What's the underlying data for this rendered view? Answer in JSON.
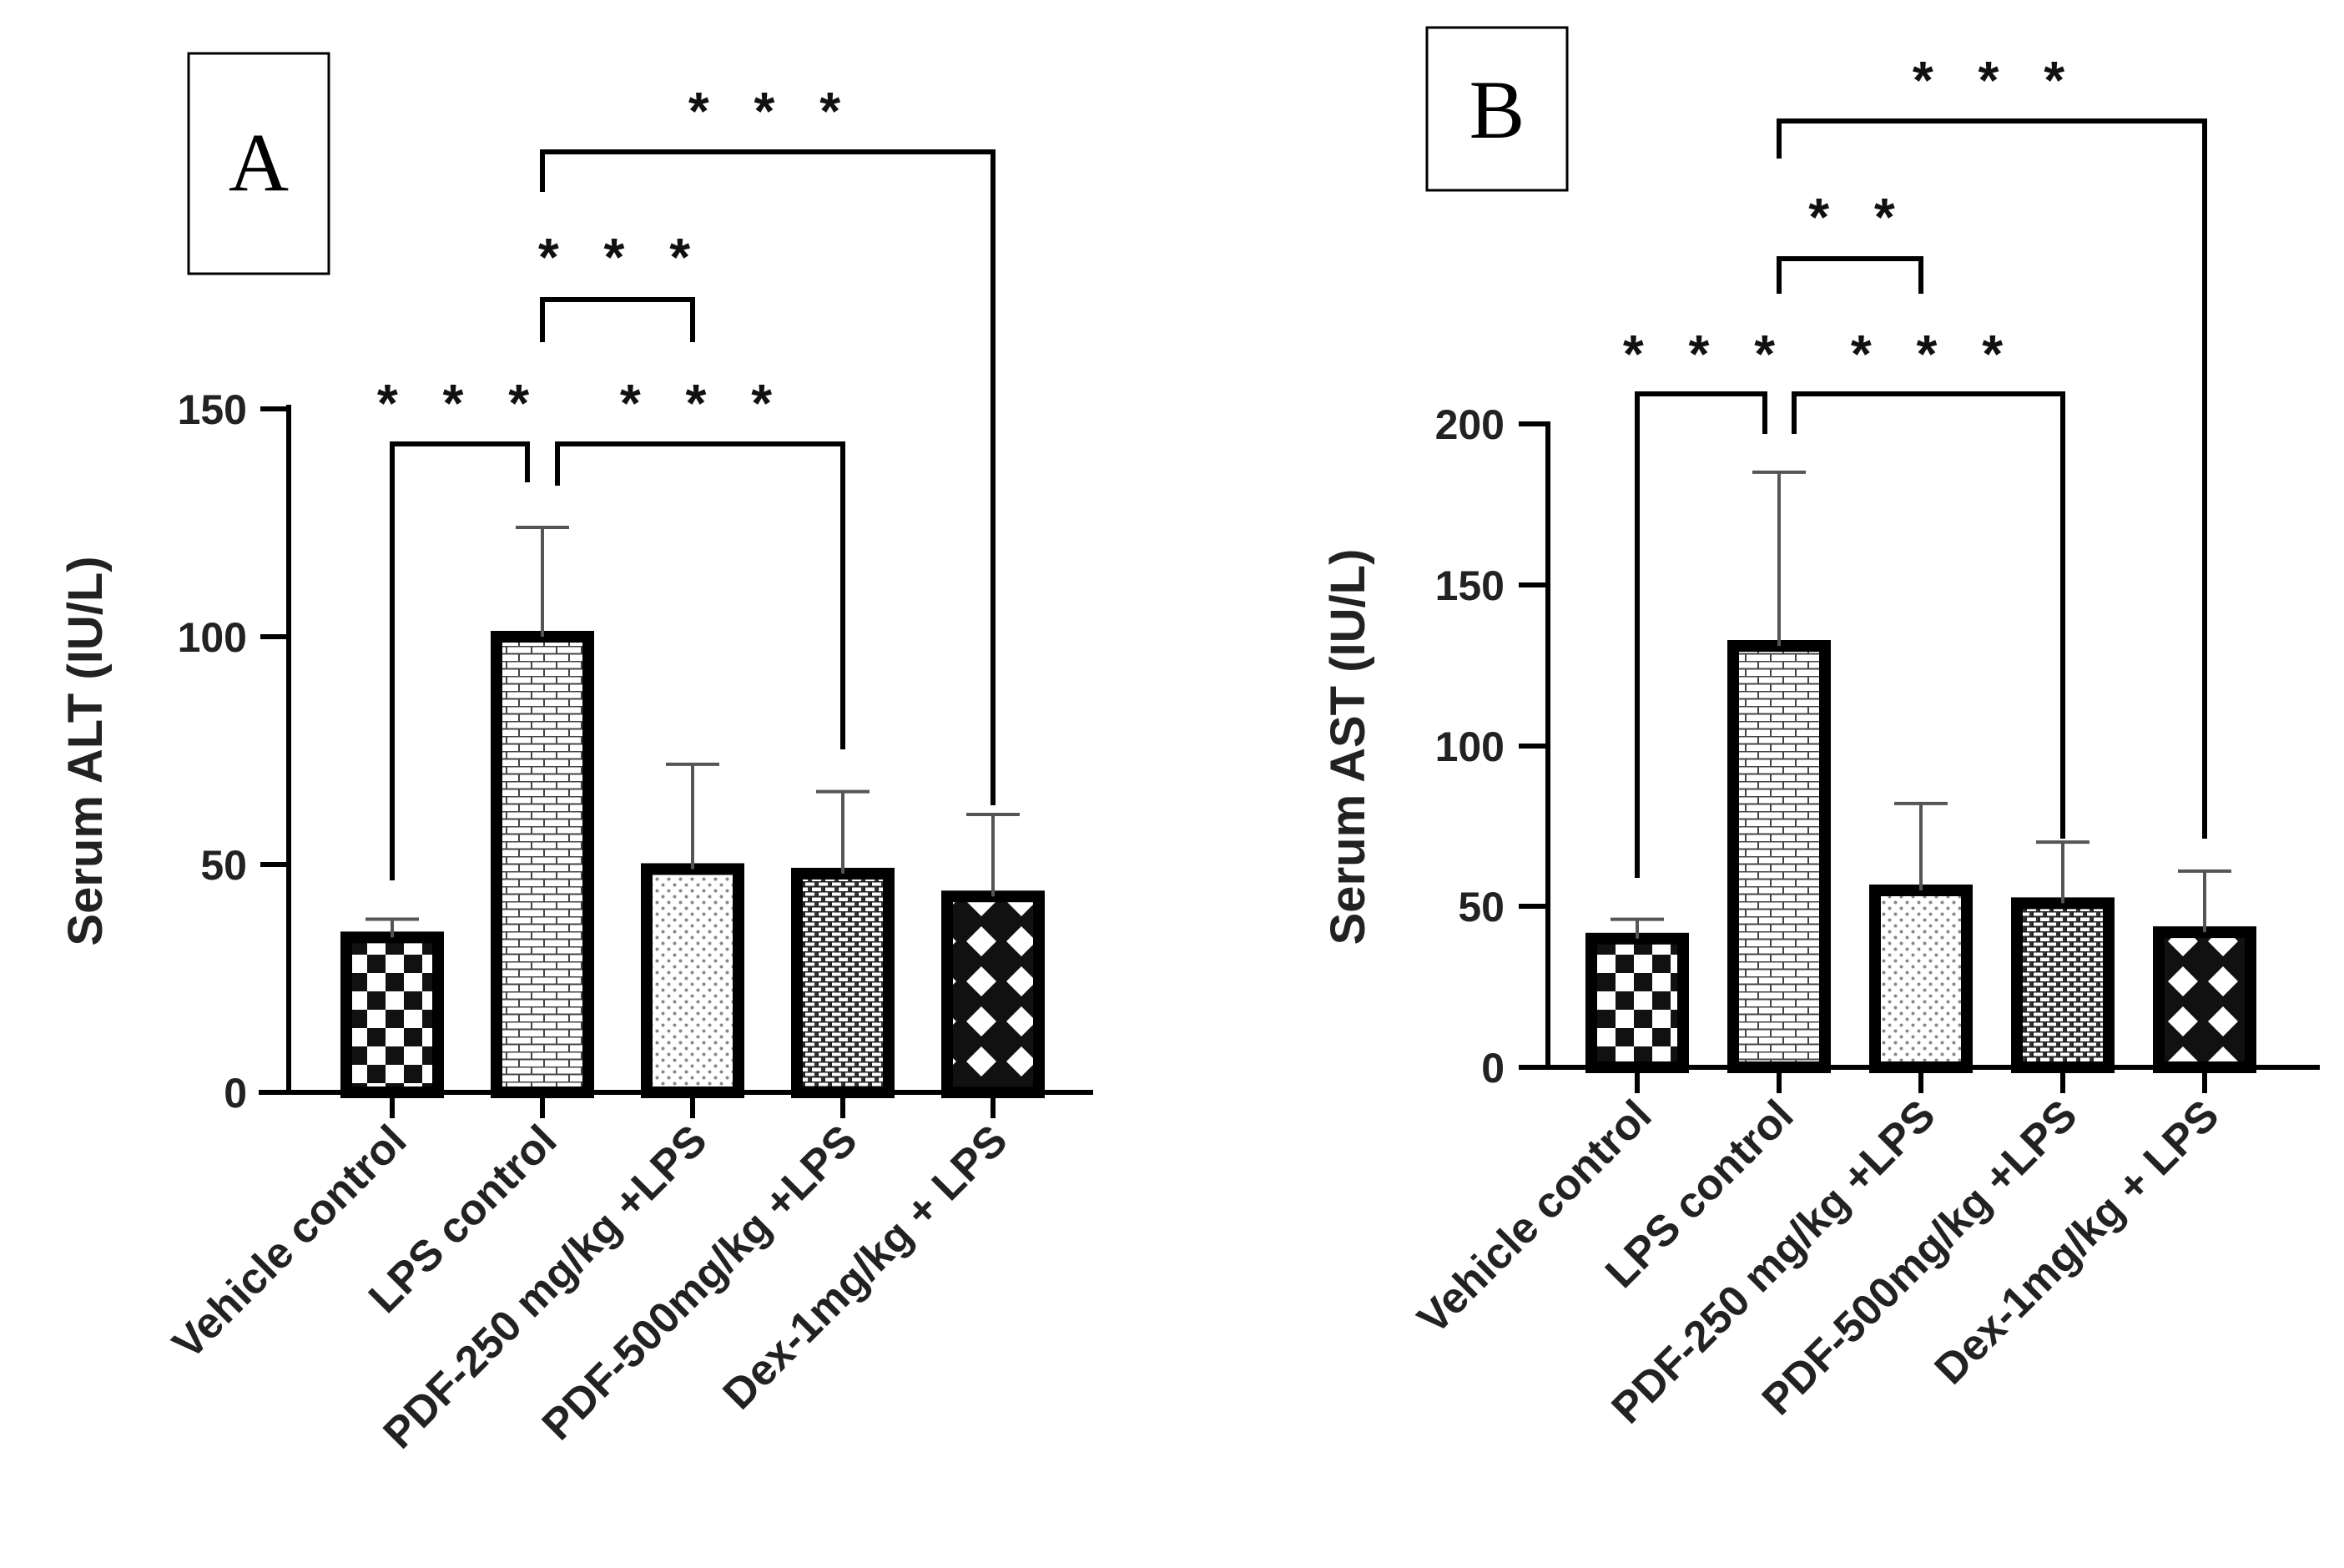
{
  "chart_data": [
    {
      "type": "bar",
      "panel_label": "A",
      "title": "",
      "xlabel": "",
      "ylabel": "Serum ALT (IU/L)",
      "ylim": [
        0,
        150
      ],
      "yticks": [
        0,
        50,
        100,
        150
      ],
      "ytick_labels": [
        "0",
        "50",
        "100",
        "150"
      ],
      "categories": [
        "Vehicle control",
        "LPS control",
        "PDF-250 mg/kg +LPS",
        "PDF-500mg/kg +LPS",
        "Dex-1mg/kg + LPS"
      ],
      "values": [
        34,
        100,
        49,
        48,
        43
      ],
      "errors": [
        4,
        24,
        23,
        18,
        18
      ],
      "patterns": [
        "checker",
        "brick",
        "dots",
        "dense-brick",
        "diamond"
      ],
      "significance": [
        {
          "from": 0,
          "to": 1,
          "label": "* * *"
        },
        {
          "from": 1,
          "to": 3,
          "label": "* * *"
        },
        {
          "from": 1,
          "to": 2,
          "label": "* * *"
        },
        {
          "from": 1,
          "to": 4,
          "label": "* * *"
        }
      ]
    },
    {
      "type": "bar",
      "panel_label": "B",
      "title": "",
      "xlabel": "",
      "ylabel": "Serum AST (IU/L)",
      "ylim": [
        0,
        200
      ],
      "yticks": [
        0,
        50,
        100,
        150,
        200
      ],
      "ytick_labels": [
        "0",
        "50",
        "100",
        "150",
        "200"
      ],
      "categories": [
        "Vehicle control",
        "LPS control",
        "PDF-250 mg/kg +LPS",
        "PDF-500mg/kg +LPS",
        "Dex-1mg/kg + LPS"
      ],
      "values": [
        40,
        131,
        55,
        51,
        42
      ],
      "errors": [
        6,
        54,
        27,
        19,
        19
      ],
      "patterns": [
        "checker",
        "brick",
        "dots",
        "dense-brick",
        "diamond"
      ],
      "significance": [
        {
          "from": 0,
          "to": 1,
          "label": "* * *"
        },
        {
          "from": 1,
          "to": 3,
          "label": "* * *"
        },
        {
          "from": 1,
          "to": 2,
          "label": "* *"
        },
        {
          "from": 1,
          "to": 4,
          "label": "* * *"
        }
      ]
    }
  ]
}
